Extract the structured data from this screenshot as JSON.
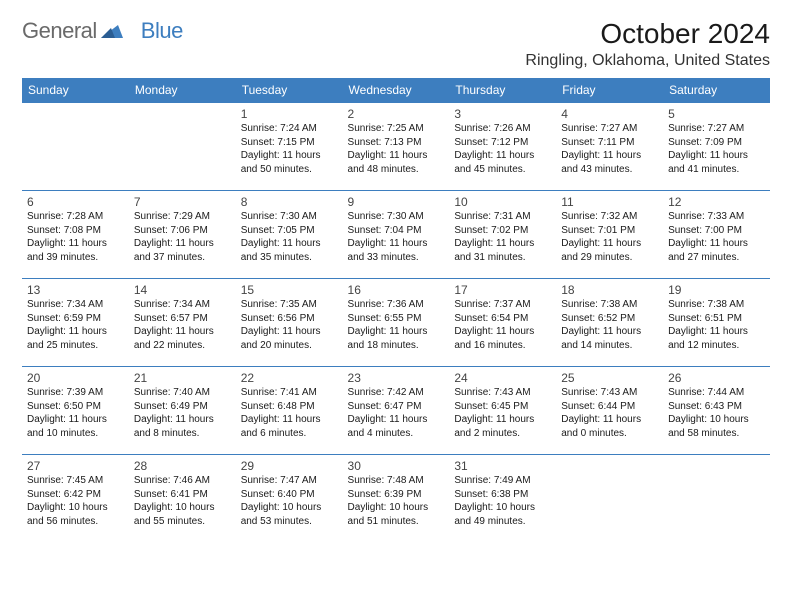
{
  "brand": {
    "name_a": "General",
    "name_b": "Blue"
  },
  "header": {
    "month_title": "October 2024",
    "location": "Ringling, Oklahoma, United States"
  },
  "colors": {
    "accent": "#3d7ebf",
    "header_text": "#ffffff",
    "body_text": "#1a1a1a",
    "background": "#ffffff"
  },
  "typography": {
    "title_fontsize": 28,
    "location_fontsize": 16,
    "dayheader_fontsize": 12,
    "daynum_fontsize": 12,
    "cell_fontsize": 10
  },
  "calendar": {
    "day_headers": [
      "Sunday",
      "Monday",
      "Tuesday",
      "Wednesday",
      "Thursday",
      "Friday",
      "Saturday"
    ],
    "weeks": [
      [
        null,
        null,
        {
          "num": "1",
          "sunrise": "7:24 AM",
          "sunset": "7:15 PM",
          "daylight": "11 hours and 50 minutes."
        },
        {
          "num": "2",
          "sunrise": "7:25 AM",
          "sunset": "7:13 PM",
          "daylight": "11 hours and 48 minutes."
        },
        {
          "num": "3",
          "sunrise": "7:26 AM",
          "sunset": "7:12 PM",
          "daylight": "11 hours and 45 minutes."
        },
        {
          "num": "4",
          "sunrise": "7:27 AM",
          "sunset": "7:11 PM",
          "daylight": "11 hours and 43 minutes."
        },
        {
          "num": "5",
          "sunrise": "7:27 AM",
          "sunset": "7:09 PM",
          "daylight": "11 hours and 41 minutes."
        }
      ],
      [
        {
          "num": "6",
          "sunrise": "7:28 AM",
          "sunset": "7:08 PM",
          "daylight": "11 hours and 39 minutes."
        },
        {
          "num": "7",
          "sunrise": "7:29 AM",
          "sunset": "7:06 PM",
          "daylight": "11 hours and 37 minutes."
        },
        {
          "num": "8",
          "sunrise": "7:30 AM",
          "sunset": "7:05 PM",
          "daylight": "11 hours and 35 minutes."
        },
        {
          "num": "9",
          "sunrise": "7:30 AM",
          "sunset": "7:04 PM",
          "daylight": "11 hours and 33 minutes."
        },
        {
          "num": "10",
          "sunrise": "7:31 AM",
          "sunset": "7:02 PM",
          "daylight": "11 hours and 31 minutes."
        },
        {
          "num": "11",
          "sunrise": "7:32 AM",
          "sunset": "7:01 PM",
          "daylight": "11 hours and 29 minutes."
        },
        {
          "num": "12",
          "sunrise": "7:33 AM",
          "sunset": "7:00 PM",
          "daylight": "11 hours and 27 minutes."
        }
      ],
      [
        {
          "num": "13",
          "sunrise": "7:34 AM",
          "sunset": "6:59 PM",
          "daylight": "11 hours and 25 minutes."
        },
        {
          "num": "14",
          "sunrise": "7:34 AM",
          "sunset": "6:57 PM",
          "daylight": "11 hours and 22 minutes."
        },
        {
          "num": "15",
          "sunrise": "7:35 AM",
          "sunset": "6:56 PM",
          "daylight": "11 hours and 20 minutes."
        },
        {
          "num": "16",
          "sunrise": "7:36 AM",
          "sunset": "6:55 PM",
          "daylight": "11 hours and 18 minutes."
        },
        {
          "num": "17",
          "sunrise": "7:37 AM",
          "sunset": "6:54 PM",
          "daylight": "11 hours and 16 minutes."
        },
        {
          "num": "18",
          "sunrise": "7:38 AM",
          "sunset": "6:52 PM",
          "daylight": "11 hours and 14 minutes."
        },
        {
          "num": "19",
          "sunrise": "7:38 AM",
          "sunset": "6:51 PM",
          "daylight": "11 hours and 12 minutes."
        }
      ],
      [
        {
          "num": "20",
          "sunrise": "7:39 AM",
          "sunset": "6:50 PM",
          "daylight": "11 hours and 10 minutes."
        },
        {
          "num": "21",
          "sunrise": "7:40 AM",
          "sunset": "6:49 PM",
          "daylight": "11 hours and 8 minutes."
        },
        {
          "num": "22",
          "sunrise": "7:41 AM",
          "sunset": "6:48 PM",
          "daylight": "11 hours and 6 minutes."
        },
        {
          "num": "23",
          "sunrise": "7:42 AM",
          "sunset": "6:47 PM",
          "daylight": "11 hours and 4 minutes."
        },
        {
          "num": "24",
          "sunrise": "7:43 AM",
          "sunset": "6:45 PM",
          "daylight": "11 hours and 2 minutes."
        },
        {
          "num": "25",
          "sunrise": "7:43 AM",
          "sunset": "6:44 PM",
          "daylight": "11 hours and 0 minutes."
        },
        {
          "num": "26",
          "sunrise": "7:44 AM",
          "sunset": "6:43 PM",
          "daylight": "10 hours and 58 minutes."
        }
      ],
      [
        {
          "num": "27",
          "sunrise": "7:45 AM",
          "sunset": "6:42 PM",
          "daylight": "10 hours and 56 minutes."
        },
        {
          "num": "28",
          "sunrise": "7:46 AM",
          "sunset": "6:41 PM",
          "daylight": "10 hours and 55 minutes."
        },
        {
          "num": "29",
          "sunrise": "7:47 AM",
          "sunset": "6:40 PM",
          "daylight": "10 hours and 53 minutes."
        },
        {
          "num": "30",
          "sunrise": "7:48 AM",
          "sunset": "6:39 PM",
          "daylight": "10 hours and 51 minutes."
        },
        {
          "num": "31",
          "sunrise": "7:49 AM",
          "sunset": "6:38 PM",
          "daylight": "10 hours and 49 minutes."
        },
        null,
        null
      ]
    ]
  },
  "labels": {
    "sunrise_prefix": "Sunrise: ",
    "sunset_prefix": "Sunset: ",
    "daylight_prefix": "Daylight: "
  }
}
